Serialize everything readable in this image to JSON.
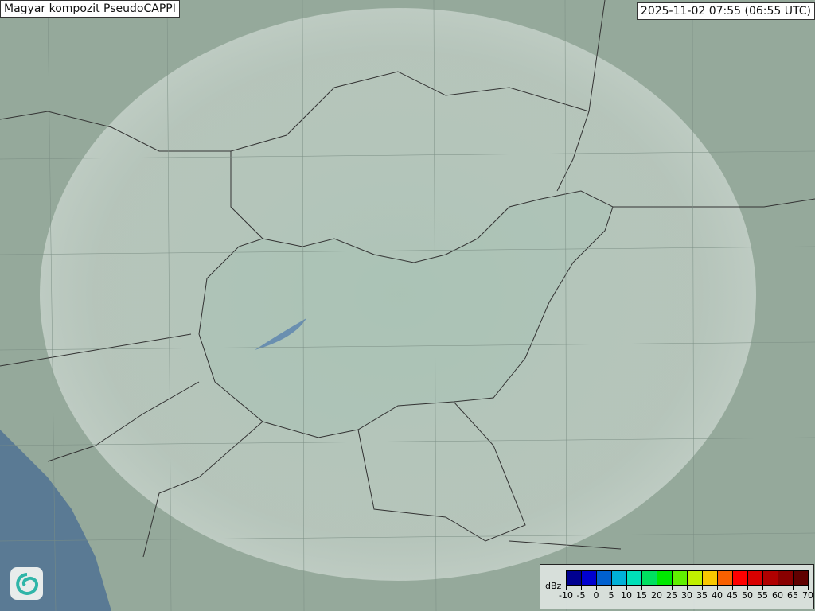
{
  "header": {
    "title": "Magyar kompozit  PseudoCAPPI",
    "timestamp": "2025-11-02 07:55 (06:55 UTC)"
  },
  "legend": {
    "unit": "dBz",
    "ticks": [
      "-10",
      "-5",
      "0",
      "5",
      "10",
      "15",
      "20",
      "25",
      "30",
      "35",
      "40",
      "45",
      "50",
      "55",
      "60",
      "65",
      "70"
    ],
    "colors": [
      "#000090",
      "#0000d0",
      "#0060d0",
      "#00b0d8",
      "#00e0b8",
      "#00e060",
      "#00e800",
      "#60f000",
      "#c0f000",
      "#f8c800",
      "#f86000",
      "#ff0000",
      "#d80000",
      "#b00000",
      "#880000",
      "#600000"
    ]
  },
  "map": {
    "radar_coverage_color": "#dde6e0",
    "sea_color": "#5a7a94",
    "land_color": "#93a89a",
    "logo": "swirl-logo-icon"
  }
}
